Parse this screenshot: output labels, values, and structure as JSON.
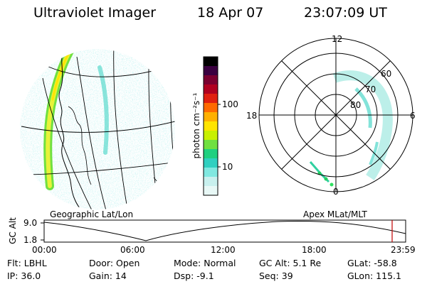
{
  "header": {
    "instrument": "Ultraviolet Imager",
    "date": "18 Apr 07",
    "time": "23:07:09 UT"
  },
  "colorbar": {
    "unit_label": "photon cm⁻²s⁻¹",
    "tick_labels": [
      "100",
      "10"
    ],
    "colors": [
      "#000000",
      "#3a0040",
      "#7a0030",
      "#b00020",
      "#e02010",
      "#ff6a00",
      "#ffb000",
      "#ffe400",
      "#c8f000",
      "#70e040",
      "#20d080",
      "#30d0c0",
      "#80e8e0",
      "#c8f0ee",
      "#e8f8f6"
    ]
  },
  "geographic_panel": {
    "label": "Geographic Lat/Lon"
  },
  "polar_panel": {
    "label": "Apex MLat/MLT",
    "mlt_labels": {
      "top": "12",
      "left": "18",
      "right": "6",
      "bottom": "0"
    },
    "lat_labels": [
      "80",
      "70",
      "60"
    ]
  },
  "timeline": {
    "axis_title": "GC Alt",
    "y_ticks": [
      "9.0",
      "1.8"
    ],
    "x_ticks": [
      "00:00",
      "06:00",
      "12:00",
      "18:00",
      "23:59"
    ],
    "current_marker_color": "#c00000"
  },
  "info": {
    "flt": "Flt: LBHL",
    "ip": "IP: 36.0",
    "door": "Door: Open",
    "gain": "Gain: 14",
    "mode": "Mode: Normal",
    "dsp": "Dsp:   -9.1",
    "gcalt": "GC Alt: 5.1 Re",
    "seq": "Seq: 39",
    "glat": "GLat: -58.8",
    "glon": "GLon: 115.1"
  }
}
